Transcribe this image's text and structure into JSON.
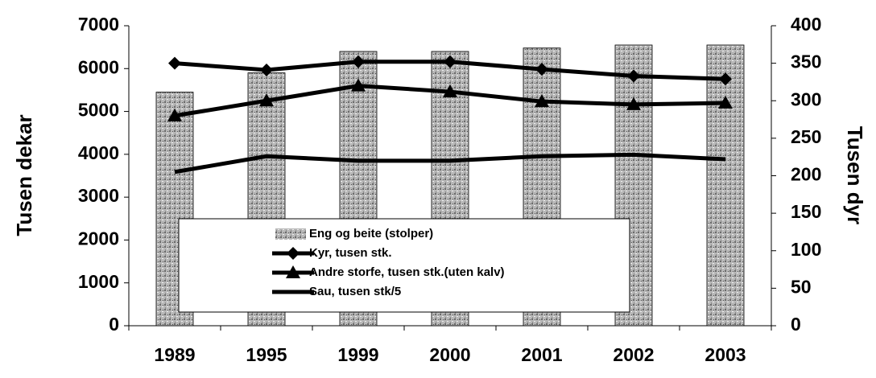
{
  "chart_data": {
    "type": "bar_line",
    "categories": [
      "1989",
      "1995",
      "1999",
      "2000",
      "2001",
      "2002",
      "2003"
    ],
    "y_label": "Tusen dekar",
    "y2_label": "Tusen dyr",
    "ylim": [
      0,
      7000
    ],
    "yticks": [
      0,
      1000,
      2000,
      3000,
      4000,
      5000,
      6000,
      7000
    ],
    "y2lim": [
      0,
      400
    ],
    "y2ticks": [
      0,
      50,
      100,
      150,
      200,
      250,
      300,
      350,
      400
    ],
    "series": [
      {
        "name": "Eng og beite (stolper)",
        "kind": "bar",
        "color": "#999999",
        "values": [
          5450,
          5900,
          6400,
          6400,
          6480,
          6550,
          6550
        ]
      },
      {
        "name": "Kyr, tusen stk.",
        "kind": "line",
        "marker": "diamond",
        "axis": "y2",
        "color": "#000000",
        "values": [
          350,
          341,
          352,
          352,
          342,
          333,
          329
        ]
      },
      {
        "name": "Andre storfe, tusen stk.(uten kalv)",
        "kind": "line",
        "marker": "triangle",
        "axis": "y2",
        "color": "#000000",
        "values": [
          280,
          300,
          320,
          312,
          299,
          295,
          297
        ]
      },
      {
        "name": "Sau, tusen stk/5",
        "kind": "line",
        "marker": "none",
        "axis": "y2",
        "color": "#000000",
        "values": [
          205,
          226,
          220,
          220,
          226,
          228,
          222
        ]
      }
    ]
  }
}
